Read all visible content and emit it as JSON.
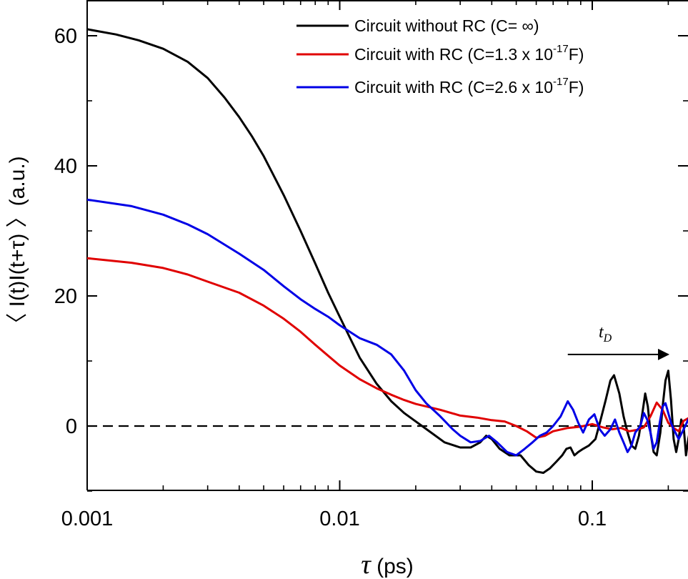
{
  "chart_data": {
    "type": "line",
    "x_scale": "log",
    "xlim": [
      0.001,
      0.25
    ],
    "ylim": [
      -10,
      65
    ],
    "grid": false,
    "legend_position": "top-right",
    "xlabel": {
      "symbol": "τ",
      "unit": " (ps)"
    },
    "ylabel": "〈 I(t)I(t+τ) 〉(a.u.)",
    "x_ticks": [
      {
        "value": 0.001,
        "label": "0.001"
      },
      {
        "value": 0.01,
        "label": "0.01"
      },
      {
        "value": 0.1,
        "label": "0.1"
      }
    ],
    "y_ticks": [
      {
        "value": 0,
        "label": "0"
      },
      {
        "value": 20,
        "label": "20"
      },
      {
        "value": 40,
        "label": "40"
      },
      {
        "value": 60,
        "label": "60"
      }
    ],
    "reference_line": {
      "y": 0,
      "style": "dashed",
      "color": "#000000"
    },
    "annotation": {
      "label": "t",
      "subscript": "D",
      "arrow_from_x": 0.08,
      "arrow_to_x": 0.2,
      "y": 11
    },
    "series": [
      {
        "name": "Circuit without RC (C= ∞)",
        "legend": {
          "text": "Circuit without RC (C= ∞)"
        },
        "color": "#000000",
        "points": [
          [
            0.001,
            61
          ],
          [
            0.0013,
            60.2
          ],
          [
            0.0016,
            59.3
          ],
          [
            0.002,
            58
          ],
          [
            0.0025,
            56
          ],
          [
            0.003,
            53.5
          ],
          [
            0.0035,
            50.5
          ],
          [
            0.004,
            47.5
          ],
          [
            0.0045,
            44.5
          ],
          [
            0.005,
            41.5
          ],
          [
            0.006,
            35.5
          ],
          [
            0.007,
            30
          ],
          [
            0.008,
            25
          ],
          [
            0.009,
            20.5
          ],
          [
            0.01,
            16.8
          ],
          [
            0.011,
            13.5
          ],
          [
            0.012,
            10.5
          ],
          [
            0.014,
            6.5
          ],
          [
            0.016,
            3.8
          ],
          [
            0.018,
            2
          ],
          [
            0.02,
            0.7
          ],
          [
            0.023,
            -1
          ],
          [
            0.026,
            -2.5
          ],
          [
            0.03,
            -3.3
          ],
          [
            0.033,
            -3.3
          ],
          [
            0.036,
            -2.5
          ],
          [
            0.038,
            -1.5
          ],
          [
            0.04,
            -2
          ],
          [
            0.043,
            -3.5
          ],
          [
            0.047,
            -4.5
          ],
          [
            0.052,
            -4.5
          ],
          [
            0.056,
            -6
          ],
          [
            0.06,
            -7
          ],
          [
            0.064,
            -7.2
          ],
          [
            0.068,
            -6.5
          ],
          [
            0.072,
            -5.5
          ],
          [
            0.076,
            -4.5
          ],
          [
            0.079,
            -3.5
          ],
          [
            0.082,
            -3.3
          ],
          [
            0.085,
            -4.5
          ],
          [
            0.088,
            -4
          ],
          [
            0.092,
            -3.5
          ],
          [
            0.097,
            -3
          ],
          [
            0.103,
            -2
          ],
          [
            0.108,
            1
          ],
          [
            0.113,
            4
          ],
          [
            0.118,
            7
          ],
          [
            0.122,
            7.8
          ],
          [
            0.128,
            5
          ],
          [
            0.133,
            1.5
          ],
          [
            0.138,
            -1
          ],
          [
            0.143,
            -3
          ],
          [
            0.148,
            -3.5
          ],
          [
            0.153,
            -1.5
          ],
          [
            0.158,
            2
          ],
          [
            0.162,
            5
          ],
          [
            0.166,
            3
          ],
          [
            0.17,
            -1
          ],
          [
            0.175,
            -4
          ],
          [
            0.18,
            -4.5
          ],
          [
            0.186,
            -1
          ],
          [
            0.19,
            3
          ],
          [
            0.195,
            7
          ],
          [
            0.2,
            8.5
          ],
          [
            0.205,
            4
          ],
          [
            0.21,
            -2
          ],
          [
            0.215,
            -4
          ],
          [
            0.22,
            -2
          ],
          [
            0.225,
            1
          ],
          [
            0.23,
            0
          ],
          [
            0.235,
            -4.5
          ],
          [
            0.24,
            -2
          ],
          [
            0.25,
            1.5
          ]
        ]
      },
      {
        "name": "Circuit with RC (C=1.3 x 10−17F)",
        "legend": {
          "text": "Circuit with RC (C=1.3 x 10",
          "sup": "-17",
          "after": "F)"
        },
        "color": "#e00000",
        "points": [
          [
            0.001,
            25.8
          ],
          [
            0.0015,
            25.1
          ],
          [
            0.002,
            24.3
          ],
          [
            0.0025,
            23.3
          ],
          [
            0.003,
            22.2
          ],
          [
            0.004,
            20.5
          ],
          [
            0.005,
            18.5
          ],
          [
            0.006,
            16.5
          ],
          [
            0.007,
            14.5
          ],
          [
            0.008,
            12.5
          ],
          [
            0.009,
            10.8
          ],
          [
            0.01,
            9.3
          ],
          [
            0.012,
            7.2
          ],
          [
            0.014,
            5.8
          ],
          [
            0.016,
            4.8
          ],
          [
            0.018,
            4
          ],
          [
            0.02,
            3.4
          ],
          [
            0.025,
            2.5
          ],
          [
            0.03,
            1.6
          ],
          [
            0.035,
            1.3
          ],
          [
            0.04,
            0.9
          ],
          [
            0.045,
            0.7
          ],
          [
            0.05,
            0
          ],
          [
            0.055,
            -0.8
          ],
          [
            0.06,
            -1.8
          ],
          [
            0.065,
            -1.5
          ],
          [
            0.07,
            -0.8
          ],
          [
            0.08,
            -0.3
          ],
          [
            0.09,
            -0.1
          ],
          [
            0.1,
            0.3
          ],
          [
            0.11,
            -0.2
          ],
          [
            0.12,
            -0.5
          ],
          [
            0.13,
            -0.3
          ],
          [
            0.14,
            -0.8
          ],
          [
            0.15,
            -0.6
          ],
          [
            0.16,
            -0.2
          ],
          [
            0.17,
            1.5
          ],
          [
            0.18,
            3.6
          ],
          [
            0.19,
            2.5
          ],
          [
            0.2,
            0.5
          ],
          [
            0.21,
            -0.3
          ],
          [
            0.22,
            -0.8
          ],
          [
            0.23,
            0.8
          ],
          [
            0.24,
            1.2
          ],
          [
            0.25,
            0.5
          ]
        ]
      },
      {
        "name": "Circuit with RC (C=2.6 x 10−17F)",
        "legend": {
          "text": "Circuit with RC (C=2.6 x 10",
          "sup": "-17",
          "after": "F)"
        },
        "color": "#0000e6",
        "points": [
          [
            0.001,
            34.8
          ],
          [
            0.0015,
            33.8
          ],
          [
            0.002,
            32.5
          ],
          [
            0.0025,
            31
          ],
          [
            0.003,
            29.5
          ],
          [
            0.004,
            26.5
          ],
          [
            0.005,
            24
          ],
          [
            0.006,
            21.5
          ],
          [
            0.007,
            19.5
          ],
          [
            0.008,
            18
          ],
          [
            0.009,
            16.8
          ],
          [
            0.01,
            15.5
          ],
          [
            0.012,
            13.5
          ],
          [
            0.014,
            12.5
          ],
          [
            0.016,
            11
          ],
          [
            0.018,
            8.5
          ],
          [
            0.02,
            5.5
          ],
          [
            0.022,
            3.5
          ],
          [
            0.025,
            1.5
          ],
          [
            0.028,
            -0.5
          ],
          [
            0.03,
            -1.5
          ],
          [
            0.033,
            -2.5
          ],
          [
            0.036,
            -2.3
          ],
          [
            0.039,
            -1.5
          ],
          [
            0.042,
            -2.5
          ],
          [
            0.046,
            -4
          ],
          [
            0.05,
            -4.5
          ],
          [
            0.054,
            -3.5
          ],
          [
            0.058,
            -2.5
          ],
          [
            0.062,
            -1.5
          ],
          [
            0.066,
            -1
          ],
          [
            0.07,
            0
          ],
          [
            0.075,
            1.5
          ],
          [
            0.08,
            3.8
          ],
          [
            0.084,
            2.5
          ],
          [
            0.088,
            0.5
          ],
          [
            0.092,
            -1
          ],
          [
            0.097,
            1
          ],
          [
            0.102,
            1.8
          ],
          [
            0.107,
            -0.5
          ],
          [
            0.112,
            -1.5
          ],
          [
            0.118,
            -0.5
          ],
          [
            0.123,
            1
          ],
          [
            0.128,
            -1
          ],
          [
            0.133,
            -2.5
          ],
          [
            0.138,
            -4
          ],
          [
            0.143,
            -3
          ],
          [
            0.148,
            -1
          ],
          [
            0.155,
            0
          ],
          [
            0.16,
            2
          ],
          [
            0.165,
            1
          ],
          [
            0.17,
            -1
          ],
          [
            0.175,
            -3.5
          ],
          [
            0.18,
            -2.5
          ],
          [
            0.185,
            0.5
          ],
          [
            0.19,
            3
          ],
          [
            0.195,
            3.5
          ],
          [
            0.2,
            2
          ],
          [
            0.205,
            0.5
          ],
          [
            0.21,
            -0.5
          ],
          [
            0.22,
            -2
          ],
          [
            0.23,
            -0.5
          ],
          [
            0.24,
            1
          ],
          [
            0.25,
            2.2
          ]
        ]
      }
    ]
  }
}
